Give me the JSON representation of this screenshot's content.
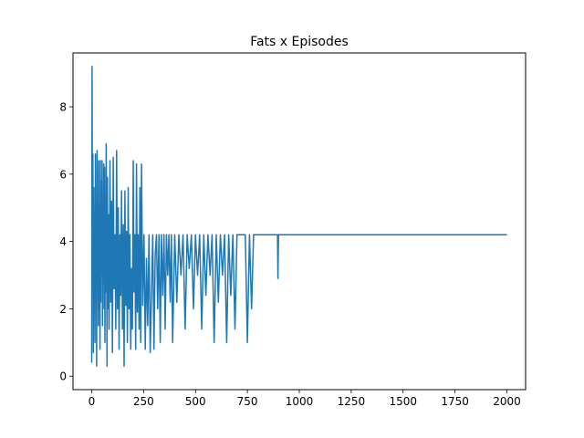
{
  "chart_data": {
    "type": "line",
    "title": "Fats x Episodes",
    "xlabel": "",
    "ylabel": "",
    "xlim": [
      -90,
      2090
    ],
    "ylim": [
      -0.4,
      9.6
    ],
    "xticks": [
      0,
      250,
      500,
      750,
      1000,
      1250,
      1500,
      1750,
      2000
    ],
    "yticks": [
      0,
      2,
      4,
      6,
      8
    ],
    "grid": false,
    "line_color": "#1f77b4",
    "series": [
      {
        "x": [
          0,
          2,
          4,
          6,
          8,
          10,
          12,
          14,
          16,
          18,
          20,
          22,
          24,
          26,
          28,
          30,
          32,
          34,
          36,
          38,
          40,
          42,
          44,
          46,
          48,
          50,
          52,
          54,
          56,
          58,
          60,
          62,
          64,
          66,
          68,
          70,
          72,
          74,
          76,
          78,
          80,
          84,
          88,
          92,
          96,
          100,
          104,
          108,
          112,
          116,
          120,
          124,
          128,
          132,
          136,
          140,
          144,
          148,
          152,
          156,
          160,
          164,
          168,
          172,
          176,
          180,
          184,
          188,
          192,
          196,
          200,
          204,
          208,
          212,
          216,
          220,
          224,
          228,
          232,
          236,
          240,
          246,
          252,
          258,
          264,
          270,
          276,
          282,
          288,
          294,
          300,
          306,
          312,
          318,
          324,
          330,
          336,
          342,
          348,
          354,
          360,
          366,
          372,
          378,
          384,
          390,
          400,
          410,
          420,
          430,
          440,
          450,
          460,
          470,
          480,
          490,
          500,
          510,
          520,
          530,
          540,
          550,
          560,
          570,
          580,
          590,
          600,
          610,
          620,
          630,
          640,
          650,
          660,
          670,
          680,
          690,
          700,
          720,
          740,
          750,
          760,
          770,
          780,
          800,
          850,
          895,
          897,
          900,
          1000,
          1500,
          2000
        ],
        "values": [
          0.4,
          9.2,
          2.8,
          6.6,
          0.7,
          5.6,
          3.0,
          4.2,
          1.0,
          6.6,
          2.2,
          5.2,
          0.3,
          6.7,
          2.8,
          4.2,
          1.5,
          6.4,
          2.0,
          5.0,
          0.8,
          6.4,
          2.2,
          5.8,
          3.0,
          6.4,
          1.5,
          5.2,
          3.5,
          6.3,
          2.0,
          6.2,
          1.0,
          5.4,
          2.5,
          6.9,
          3.8,
          0.3,
          5.9,
          2.0,
          4.8,
          1.4,
          6.4,
          2.2,
          5.2,
          0.7,
          6.5,
          2.6,
          4.2,
          1.4,
          6.7,
          2.0,
          5.0,
          0.8,
          4.2,
          2.4,
          5.5,
          1.4,
          4.5,
          0.3,
          5.5,
          2.1,
          4.3,
          1.0,
          5.6,
          2.0,
          4.2,
          0.8,
          3.2,
          1.4,
          6.4,
          2.5,
          4.2,
          0.8,
          6.3,
          1.9,
          4.2,
          1.4,
          5.6,
          1.0,
          6.3,
          2.1,
          4.2,
          0.8,
          3.5,
          1.5,
          4.2,
          0.7,
          2.4,
          4.2,
          0.8,
          3.6,
          4.2,
          2.0,
          4.2,
          1.0,
          4.2,
          2.4,
          4.2,
          1.4,
          4.2,
          3.0,
          4.2,
          2.2,
          4.2,
          1.0,
          4.2,
          2.2,
          4.2,
          3.0,
          4.2,
          1.4,
          4.2,
          3.2,
          4.2,
          2.0,
          4.2,
          3.0,
          4.2,
          1.4,
          4.2,
          2.4,
          4.2,
          3.0,
          4.2,
          1.0,
          4.2,
          2.2,
          4.2,
          3.0,
          4.2,
          1.0,
          4.2,
          2.4,
          4.2,
          1.4,
          4.2,
          4.2,
          4.2,
          1.0,
          4.2,
          2.0,
          4.2,
          4.2,
          4.2,
          4.2,
          2.9,
          4.2,
          4.2,
          4.2,
          4.2
        ]
      }
    ]
  }
}
